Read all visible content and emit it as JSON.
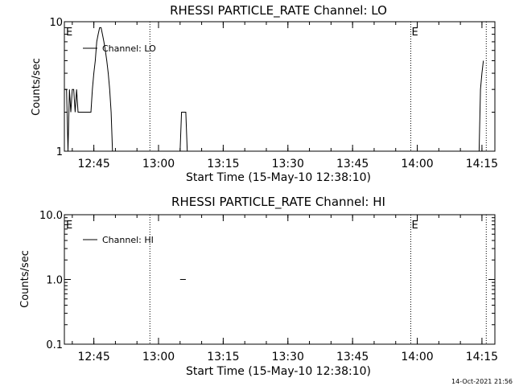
{
  "footer_timestamp": "14-Oct-2021 21:56",
  "chart_data": [
    {
      "type": "line",
      "title": "RHESSI PARTICLE_RATE Channel: LO",
      "xlabel": "Start Time (15-May-10 12:38:10)",
      "ylabel": "Counts/sec",
      "yscale": "log",
      "ylim": [
        1,
        10
      ],
      "xlim": [
        "12:38:10",
        "14:18:00"
      ],
      "x_ticks": [
        "12:45",
        "13:00",
        "13:15",
        "13:30",
        "13:45",
        "14:00",
        "14:15"
      ],
      "y_ticks": [
        "1",
        "10"
      ],
      "vlines": [
        "12:58:00",
        "13:58:30",
        "14:16:00"
      ],
      "markers": [
        {
          "label": "E",
          "x": "12:38:10"
        },
        {
          "label": "E",
          "x": "13:58:30"
        }
      ],
      "series": [
        {
          "name": "Channel: LO",
          "points": [
            [
              "12:38:10",
              3
            ],
            [
              "12:38:40",
              3
            ],
            [
              "12:39:00",
              1
            ],
            [
              "12:39:20",
              3
            ],
            [
              "12:39:40",
              2
            ],
            [
              "12:40:00",
              3
            ],
            [
              "12:40:20",
              3
            ],
            [
              "12:40:40",
              2
            ],
            [
              "12:41:00",
              3
            ],
            [
              "12:41:20",
              2
            ],
            [
              "12:41:40",
              2
            ],
            [
              "12:44:20",
              2
            ],
            [
              "12:44:40",
              3
            ],
            [
              "12:45:00",
              4
            ],
            [
              "12:45:20",
              5
            ],
            [
              "12:45:40",
              7
            ],
            [
              "12:46:00",
              8
            ],
            [
              "12:46:20",
              9
            ],
            [
              "12:46:40",
              9
            ],
            [
              "12:47:00",
              8
            ],
            [
              "12:47:20",
              7
            ],
            [
              "12:47:40",
              6
            ],
            [
              "12:48:00",
              5
            ],
            [
              "12:48:20",
              4
            ],
            [
              "12:48:40",
              3
            ],
            [
              "12:49:00",
              2
            ],
            [
              "12:49:20",
              1
            ],
            [
              null,
              null
            ],
            [
              "13:05:00",
              1
            ],
            [
              "13:05:20",
              2
            ],
            [
              "13:06:20",
              2
            ],
            [
              "13:06:40",
              1
            ],
            [
              null,
              null
            ],
            [
              "14:14:20",
              1
            ],
            [
              "14:14:40",
              3
            ],
            [
              "14:15:00",
              4
            ],
            [
              "14:15:20",
              5
            ]
          ]
        }
      ]
    },
    {
      "type": "line",
      "title": "RHESSI PARTICLE_RATE Channel: HI",
      "xlabel": "Start Time (15-May-10 12:38:10)",
      "ylabel": "Counts/sec",
      "yscale": "log",
      "ylim": [
        0.1,
        10
      ],
      "xlim": [
        "12:38:10",
        "14:18:00"
      ],
      "x_ticks": [
        "12:45",
        "13:00",
        "13:15",
        "13:30",
        "13:45",
        "14:00",
        "14:15"
      ],
      "y_ticks": [
        "0.1",
        "1.0",
        "10.0"
      ],
      "vlines": [
        "12:58:00",
        "13:58:30",
        "14:16:00"
      ],
      "markers": [
        {
          "label": "E",
          "x": "12:38:10"
        },
        {
          "label": "E",
          "x": "13:58:30"
        }
      ],
      "series": [
        {
          "name": "Channel: HI",
          "points": [
            [
              "13:05:00",
              1
            ],
            [
              "13:06:20",
              1
            ]
          ]
        }
      ]
    }
  ]
}
